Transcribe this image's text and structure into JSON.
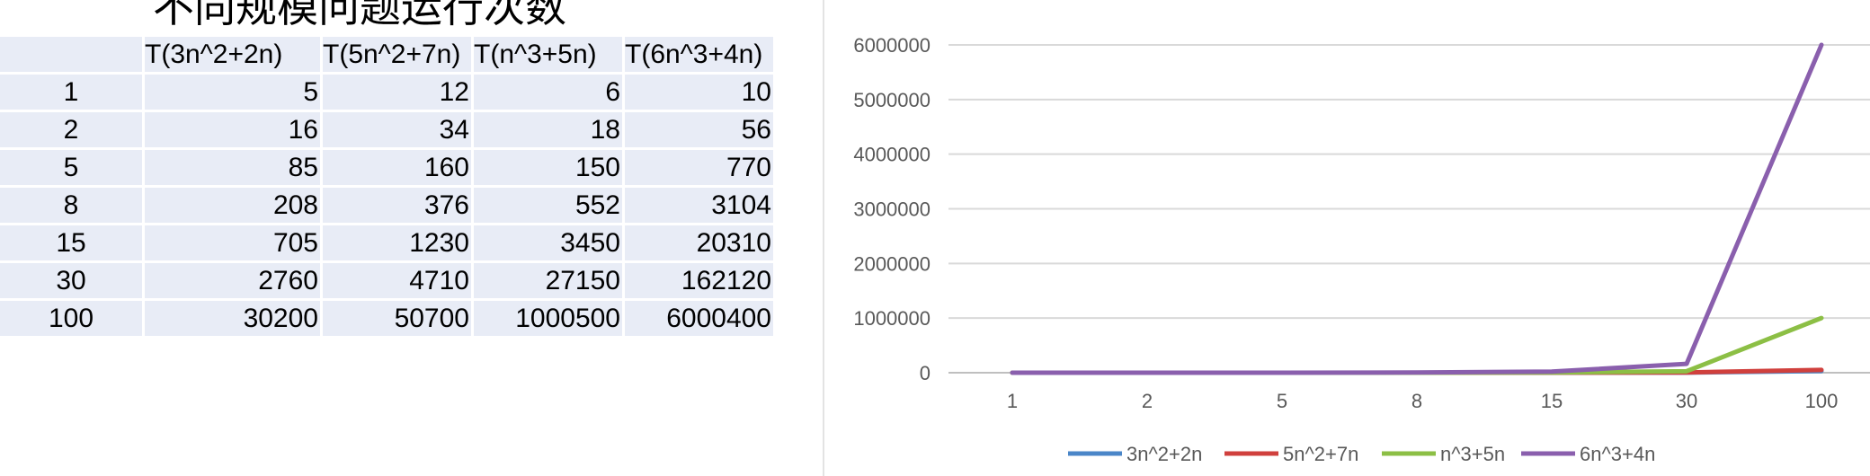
{
  "page": {
    "title": "不同规模问题运行次数"
  },
  "table": {
    "columns": [
      "",
      "T(3n^2+2n)",
      "T(5n^2+7n)",
      "T(n^3+5n)",
      "T(6n^3+4n)"
    ],
    "rows": [
      [
        "1",
        "5",
        "12",
        "6",
        "10"
      ],
      [
        "2",
        "16",
        "34",
        "18",
        "56"
      ],
      [
        "5",
        "85",
        "160",
        "150",
        "770"
      ],
      [
        "8",
        "208",
        "376",
        "552",
        "3104"
      ],
      [
        "15",
        "705",
        "1230",
        "3450",
        "20310"
      ],
      [
        "30",
        "2760",
        "4710",
        "27150",
        "162120"
      ],
      [
        "100",
        "30200",
        "50700",
        "1000500",
        "6000400"
      ]
    ]
  },
  "chart_data": {
    "type": "line",
    "categories": [
      "1",
      "2",
      "5",
      "8",
      "15",
      "30",
      "100"
    ],
    "series": [
      {
        "name": "3n^2+2n",
        "color": "#4a86c8",
        "values": [
          5,
          16,
          85,
          208,
          705,
          2760,
          30200
        ]
      },
      {
        "name": "5n^2+7n",
        "color": "#d0403d",
        "values": [
          12,
          34,
          160,
          376,
          1230,
          4710,
          50700
        ]
      },
      {
        "name": "n^3+5n",
        "color": "#8cbf45",
        "values": [
          6,
          18,
          150,
          552,
          3450,
          27150,
          1000500
        ]
      },
      {
        "name": "6n^3+4n",
        "color": "#8a5fad",
        "values": [
          10,
          56,
          770,
          3104,
          20310,
          162120,
          6000400
        ]
      }
    ],
    "y_ticks": [
      "0",
      "1000000",
      "2000000",
      "3000000",
      "4000000",
      "5000000",
      "6000000"
    ],
    "ylim": [
      0,
      6000000
    ],
    "grid": true,
    "legend_position": "bottom"
  }
}
